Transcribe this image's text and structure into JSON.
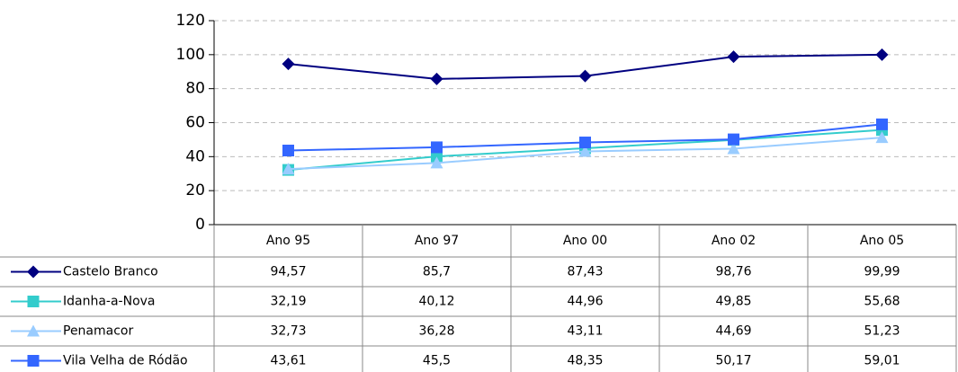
{
  "chart_data": {
    "type": "line",
    "categories": [
      "Ano 95",
      "Ano 97",
      "Ano 00",
      "Ano 02",
      "Ano 05"
    ],
    "series": [
      {
        "name": "Castelo Branco",
        "color": "#000080",
        "marker": "diamond",
        "values": [
          94.57,
          85.7,
          87.43,
          98.76,
          99.99
        ],
        "value_labels": [
          "94,57",
          "85,7",
          "87,43",
          "98,76",
          "99,99"
        ]
      },
      {
        "name": "Idanha-a-Nova",
        "color": "#33cccc",
        "marker": "square",
        "values": [
          32.19,
          40.12,
          44.96,
          49.85,
          55.68
        ],
        "value_labels": [
          "32,19",
          "40,12",
          "44,96",
          "49,85",
          "55,68"
        ]
      },
      {
        "name": "Penamacor",
        "color": "#99ccff",
        "marker": "triangle",
        "values": [
          32.73,
          36.28,
          43.11,
          44.69,
          51.23
        ],
        "value_labels": [
          "32,73",
          "36,28",
          "43,11",
          "44,69",
          "51,23"
        ]
      },
      {
        "name": "Vila Velha de Ródão",
        "color": "#3366ff",
        "marker": "square",
        "values": [
          43.61,
          45.5,
          48.35,
          50.17,
          59.01
        ],
        "value_labels": [
          "43,61",
          "45,5",
          "48,35",
          "50,17",
          "59,01"
        ]
      }
    ],
    "ylim": [
      0,
      120
    ],
    "yticks": [
      0,
      20,
      40,
      60,
      80,
      100,
      120
    ],
    "grid": true,
    "legend": "table"
  }
}
